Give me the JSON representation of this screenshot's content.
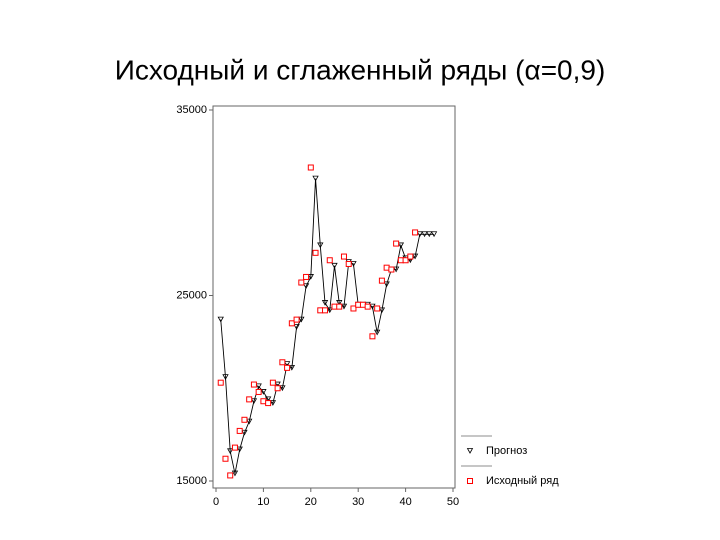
{
  "chart_data": {
    "type": "line",
    "title": "Исходный и сглаженный ряды (α=0,9)",
    "x": [
      1,
      2,
      3,
      4,
      5,
      6,
      7,
      8,
      9,
      10,
      11,
      12,
      13,
      14,
      15,
      16,
      17,
      18,
      19,
      20,
      21,
      22,
      23,
      24,
      25,
      26,
      27,
      28,
      29,
      30,
      31,
      32,
      33,
      34,
      35,
      36,
      37,
      38,
      39,
      40,
      41,
      42,
      43,
      44,
      45,
      46
    ],
    "series": [
      {
        "name": "Прогноз",
        "color": "#000000",
        "marker": "triangle",
        "values": [
          23700,
          20600,
          16600,
          15400,
          16700,
          17600,
          18200,
          19300,
          20100,
          19800,
          19400,
          19200,
          20200,
          20000,
          21300,
          21100,
          23300,
          23700,
          25500,
          26000,
          31300,
          27700,
          24600,
          24200,
          26600,
          24600,
          24400,
          26800,
          26700,
          24500,
          24500,
          24500,
          24400,
          23000,
          24200,
          25600,
          26400,
          26400,
          27700,
          27000,
          26900,
          27100,
          28300,
          28300,
          28300,
          28300
        ]
      },
      {
        "name": "Исходный ряд",
        "color": "#ff0000",
        "marker": "square",
        "values": [
          20300,
          16200,
          15300,
          16800,
          17700,
          18300,
          19400,
          20200,
          19800,
          19300,
          19200,
          20300,
          20000,
          21400,
          21100,
          23500,
          23700,
          25700,
          26000,
          31900,
          27300,
          24200,
          24200,
          26900,
          24400,
          24400,
          27100,
          26700,
          24300,
          24500,
          24500,
          24400,
          22800,
          24300,
          25800,
          26500,
          26400,
          27800,
          26900,
          26900,
          27100,
          28400,
          null,
          null,
          null,
          null
        ]
      }
    ],
    "xlim": [
      0,
      50
    ],
    "xticks": [
      0,
      10,
      20,
      30,
      40,
      50
    ],
    "ylim": [
      15000,
      35000
    ],
    "yticks": [
      15000,
      25000,
      35000
    ],
    "legend": "bottom-right"
  }
}
